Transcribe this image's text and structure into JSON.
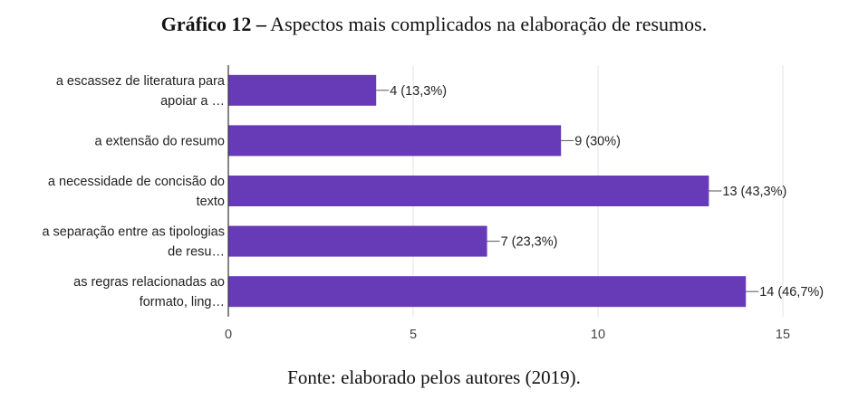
{
  "title": {
    "bold": "Gráfico 12 –",
    "text": " Aspectos mais complicados na elaboração de resumos."
  },
  "source": "Fonte: elaborado pelos autores (2019).",
  "chart_data": {
    "type": "bar",
    "orientation": "horizontal",
    "bar_color": "#673ab7",
    "categories": [
      [
        "a escassez de literatura para",
        "apoiar a …"
      ],
      [
        "a extensão do resumo"
      ],
      [
        "a necessidade de concisão do",
        "texto"
      ],
      [
        "a separação entre as tipologias",
        "de resu…"
      ],
      [
        "as regras relacionadas ao",
        "formato, ling…"
      ]
    ],
    "values": [
      4,
      9,
      13,
      7,
      14
    ],
    "data_labels": [
      "4 (13,3%)",
      "9 (30%)",
      "13 (43,3%)",
      "7 (23,3%)",
      "14 (46,7%)"
    ],
    "xlim": [
      0,
      15
    ],
    "xticks": [
      0,
      5,
      10,
      15
    ],
    "grid": true
  }
}
